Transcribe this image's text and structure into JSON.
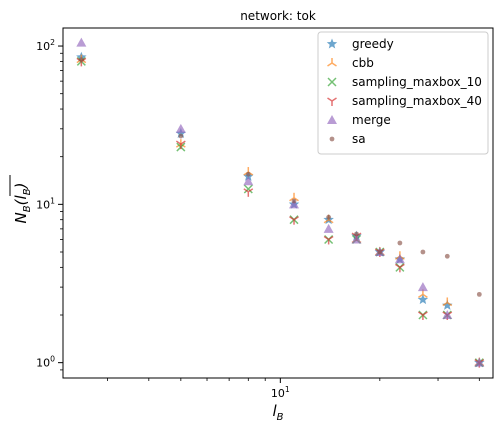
{
  "chart_data": {
    "type": "scatter",
    "title": "network: tok",
    "xlabel": "l_B",
    "ylabel": "N_B(l_B)",
    "xscale": "log",
    "yscale": "log",
    "xlim": [
      2.2,
      44
    ],
    "ylim": [
      0.8,
      130
    ],
    "x_ticks": [
      {
        "value": 10,
        "label": "10^1"
      }
    ],
    "y_ticks": [
      {
        "value": 1,
        "label": "10^0"
      },
      {
        "value": 10,
        "label": "10^1"
      },
      {
        "value": 100,
        "label": "10^2"
      }
    ],
    "legend_position": "top-right",
    "series": [
      {
        "name": "greedy",
        "marker": "star",
        "color": "#1f77b4",
        "points": [
          [
            2.5,
            85
          ],
          [
            5,
            28
          ],
          [
            8,
            15
          ],
          [
            11,
            10
          ],
          [
            14,
            8
          ],
          [
            17,
            6.3
          ],
          [
            20,
            5
          ],
          [
            23,
            4.5
          ],
          [
            27,
            2.5
          ],
          [
            32,
            2.3
          ],
          [
            40,
            1
          ]
        ]
      },
      {
        "name": "cbb",
        "marker": "tri_up",
        "color": "#ff7f0e",
        "points": [
          [
            2.5,
            82
          ],
          [
            5,
            24
          ],
          [
            8,
            16
          ],
          [
            11,
            11
          ],
          [
            14,
            8
          ],
          [
            17,
            6
          ],
          [
            20,
            5
          ],
          [
            23,
            4.7
          ],
          [
            27,
            2.7
          ],
          [
            32,
            2.4
          ],
          [
            40,
            1
          ]
        ]
      },
      {
        "name": "sampling_maxbox_10",
        "marker": "x",
        "color": "#2ca02c",
        "points": [
          [
            2.5,
            80
          ],
          [
            5,
            23
          ],
          [
            8,
            12.5
          ],
          [
            11,
            8
          ],
          [
            14,
            6
          ],
          [
            17,
            6
          ],
          [
            20,
            5
          ],
          [
            23,
            4
          ],
          [
            27,
            2
          ],
          [
            32,
            2
          ],
          [
            40,
            1
          ]
        ]
      },
      {
        "name": "sampling_maxbox_40",
        "marker": "tri_down",
        "color": "#d62728",
        "points": [
          [
            2.5,
            80
          ],
          [
            5,
            24
          ],
          [
            8,
            12
          ],
          [
            11,
            8
          ],
          [
            14,
            6
          ],
          [
            17,
            6.3
          ],
          [
            20,
            5
          ],
          [
            23,
            4
          ],
          [
            27,
            2
          ],
          [
            32,
            2
          ],
          [
            40,
            1
          ]
        ]
      },
      {
        "name": "merge",
        "marker": "triangle",
        "color": "#9467bd",
        "points": [
          [
            2.5,
            105
          ],
          [
            5,
            30
          ],
          [
            8,
            14
          ],
          [
            11,
            10
          ],
          [
            14,
            7
          ],
          [
            17,
            6
          ],
          [
            20,
            5
          ],
          [
            23,
            4.5
          ],
          [
            27,
            3
          ],
          [
            32,
            2
          ],
          [
            40,
            1
          ]
        ]
      },
      {
        "name": "sa",
        "marker": "dot",
        "color": "#8c564b",
        "points": [
          [
            2.5,
            82
          ],
          [
            5,
            27
          ],
          [
            8,
            15.5
          ],
          [
            11,
            10.5
          ],
          [
            14,
            8.3
          ],
          [
            17,
            6.5
          ],
          [
            20,
            5
          ],
          [
            23,
            5.7
          ],
          [
            27,
            5
          ],
          [
            32,
            4.7
          ],
          [
            40,
            2.7
          ]
        ]
      }
    ]
  }
}
